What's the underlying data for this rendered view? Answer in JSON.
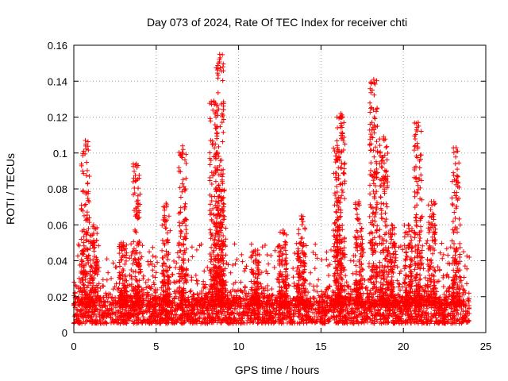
{
  "chart_data": {
    "type": "scatter",
    "title": "Day 073 of 2024, Rate Of TEC Index for receiver chti",
    "xlabel": "GPS time / hours",
    "ylabel": "ROTI / TECUs",
    "xlim": [
      0,
      25
    ],
    "ylim": [
      0,
      0.16
    ],
    "xticks": [
      0,
      5,
      10,
      15,
      20,
      25
    ],
    "yticks": [
      0,
      0.02,
      0.04,
      0.06,
      0.08,
      0.1,
      0.12,
      0.14,
      0.16
    ],
    "xtick_labels": [
      "0",
      "5",
      "10",
      "15",
      "20",
      "25"
    ],
    "ytick_labels": [
      "0",
      "0.02",
      "0.04",
      "0.06",
      "0.08",
      "0.1",
      "0.12",
      "0.14",
      "0.16"
    ],
    "grid": true,
    "marker": "+",
    "color": "#ff0000",
    "x_range_of_data": [
      0,
      24
    ],
    "baseline_band": [
      0.005,
      0.02
    ],
    "peaks": [
      {
        "x": 0.7,
        "ymax": 0.107
      },
      {
        "x": 1.2,
        "ymax": 0.06
      },
      {
        "x": 3.0,
        "ymax": 0.05
      },
      {
        "x": 3.8,
        "ymax": 0.094
      },
      {
        "x": 5.6,
        "ymax": 0.072
      },
      {
        "x": 6.6,
        "ymax": 0.104
      },
      {
        "x": 8.5,
        "ymax": 0.129
      },
      {
        "x": 8.85,
        "ymax": 0.155
      },
      {
        "x": 9.0,
        "ymax": 0.085
      },
      {
        "x": 11.0,
        "ymax": 0.045
      },
      {
        "x": 12.7,
        "ymax": 0.057
      },
      {
        "x": 13.8,
        "ymax": 0.065
      },
      {
        "x": 16.0,
        "ymax": 0.103
      },
      {
        "x": 16.2,
        "ymax": 0.122
      },
      {
        "x": 17.3,
        "ymax": 0.073
      },
      {
        "x": 18.2,
        "ymax": 0.141
      },
      {
        "x": 18.8,
        "ymax": 0.109
      },
      {
        "x": 19.3,
        "ymax": 0.06
      },
      {
        "x": 20.3,
        "ymax": 0.06
      },
      {
        "x": 20.9,
        "ymax": 0.117
      },
      {
        "x": 21.7,
        "ymax": 0.073
      },
      {
        "x": 23.2,
        "ymax": 0.103
      }
    ]
  }
}
